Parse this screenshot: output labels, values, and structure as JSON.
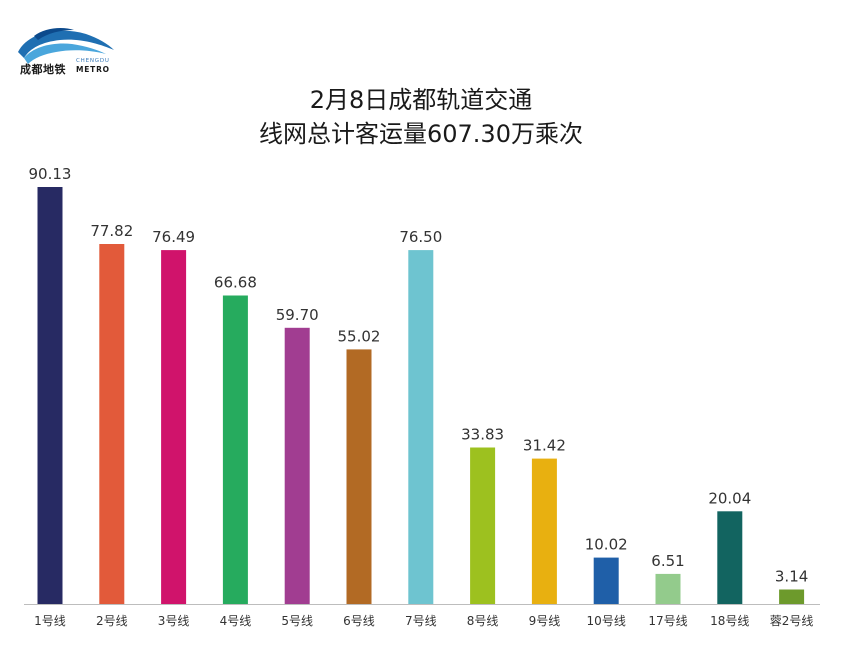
{
  "logo": {
    "name": "成都地铁",
    "en_top": "CHENGDU",
    "en_bottom": "METRO"
  },
  "title": {
    "line1": "2月8日成都轨道交通",
    "line2": "线网总计客运量607.30万乘次"
  },
  "colors": {
    "bars": [
      "#272a63",
      "#e25a3a",
      "#d0136b",
      "#26ab5e",
      "#a13d91",
      "#b26a24",
      "#6ec4d0",
      "#9dc11f",
      "#e8b010",
      "#1f5fa8",
      "#93cb8c",
      "#126460",
      "#6d9a2c"
    ],
    "axis": "#bdbdbd",
    "text": "#333333"
  },
  "chart_data": {
    "type": "bar",
    "categories": [
      "1号线",
      "2号线",
      "3号线",
      "4号线",
      "5号线",
      "6号线",
      "7号线",
      "8号线",
      "9号线",
      "10号线",
      "17号线",
      "18号线",
      "蓉2号线"
    ],
    "value_labels": [
      "90.13",
      "77.82",
      "76.49",
      "66.68",
      "59.70",
      "55.02",
      "76.50",
      "33.83",
      "31.42",
      "10.02",
      "6.51",
      "20.04",
      "3.14"
    ],
    "values": [
      90.13,
      77.82,
      76.49,
      66.68,
      59.7,
      55.02,
      76.5,
      33.83,
      31.42,
      10.02,
      6.51,
      20.04,
      3.14
    ],
    "ylim": [
      0,
      90.13
    ],
    "grid": false,
    "legend": "none"
  }
}
